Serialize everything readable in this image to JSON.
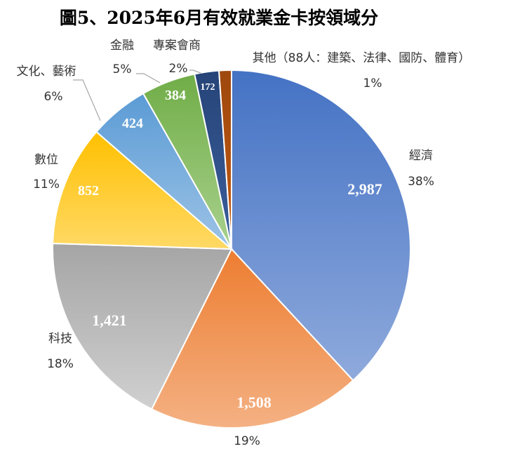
{
  "chart_data": {
    "type": "pie",
    "title": "圖5、2025年6月有效就業金卡按領域分",
    "slices": [
      {
        "label": "經濟",
        "value": 2987,
        "value_label": "2,987",
        "percent_label": "38%",
        "color": "#4472C4",
        "color_light": "#8FAADC"
      },
      {
        "label": "",
        "value": 1508,
        "value_label": "1,508",
        "percent_label": "19%",
        "color": "#ED7D31",
        "color_light": "#F4B183"
      },
      {
        "label": "科技",
        "value": 1421,
        "value_label": "1,421",
        "percent_label": "18%",
        "color": "#A5A5A5",
        "color_light": "#D0D0D0"
      },
      {
        "label": "數位",
        "value": 852,
        "value_label": "852",
        "percent_label": "11%",
        "color": "#FFC000",
        "color_light": "#FFD966"
      },
      {
        "label": "文化、藝術",
        "value": 424,
        "value_label": "424",
        "percent_label": "6%",
        "color": "#5B9BD5",
        "color_light": "#9DC3E6"
      },
      {
        "label": "金融",
        "value": 384,
        "value_label": "384",
        "percent_label": "5%",
        "color": "#70AD47",
        "color_light": "#A9D18E"
      },
      {
        "label": "專案會商",
        "value": 172,
        "value_label": "172",
        "percent_label": "2%",
        "color": "#264478",
        "color_light": "#3B5E9C"
      },
      {
        "label": "其他（88人：建築、法律、國防、體育）",
        "value": 88,
        "value_label": "",
        "percent_label": "1%",
        "color": "#9E480E",
        "color_light": "#C55A11"
      }
    ]
  }
}
